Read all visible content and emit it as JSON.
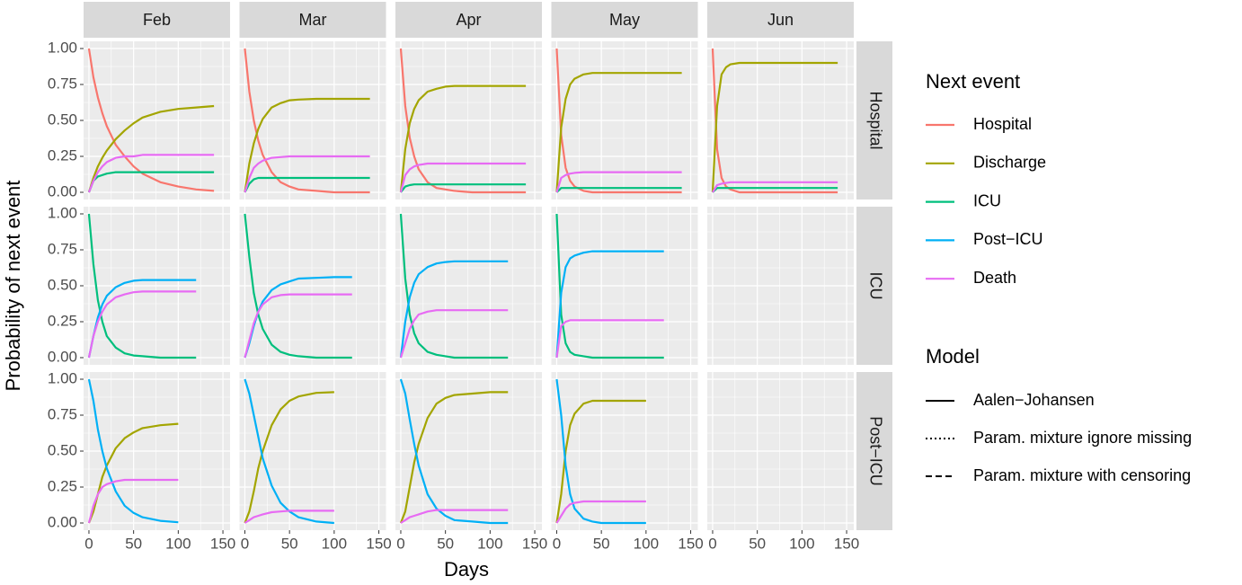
{
  "chart_data": {
    "type": "facet_line",
    "x_label": "Days",
    "y_label": "Probability of next event",
    "columns": [
      "Feb",
      "Mar",
      "Apr",
      "May",
      "Jun"
    ],
    "rows": [
      "Hospital",
      "ICU",
      "Post−ICU"
    ],
    "legend_title": "Next event",
    "series": [
      {
        "name": "Hospital",
        "color": "#F8766D"
      },
      {
        "name": "Discharge",
        "color": "#A3A500"
      },
      {
        "name": "ICU",
        "color": "#00BF7D"
      },
      {
        "name": "Post−ICU",
        "color": "#00B0F6"
      },
      {
        "name": "Death",
        "color": "#E76BF3"
      }
    ],
    "model_title": "Model",
    "models": [
      {
        "name": "Aalen−Johansen",
        "dash": "none"
      },
      {
        "name": "Param. mixture ignore missing",
        "dash": "2,3"
      },
      {
        "name": "Param. mixture with censoring",
        "dash": "7,4"
      }
    ],
    "x": [
      0,
      5,
      10,
      15,
      20,
      30,
      40,
      50,
      60,
      80,
      100,
      120,
      140
    ],
    "xlim": [
      -6,
      158
    ],
    "xticks": [
      0,
      50,
      100,
      150
    ],
    "ylim": [
      -0.05,
      1.05
    ],
    "yticks": [
      {
        "value": 0,
        "label": "0.00"
      },
      {
        "value": 0.25,
        "label": "0.25"
      },
      {
        "value": 0.5,
        "label": "0.50"
      },
      {
        "value": 0.75,
        "label": "0.75"
      },
      {
        "value": 1,
        "label": "1.00"
      }
    ],
    "grid": true,
    "panels": [
      [
        {
          "values": [
            [
              1,
              0.8,
              0.66,
              0.55,
              0.46,
              0.33,
              0.25,
              0.18,
              0.13,
              0.07,
              0.04,
              0.02,
              0.01
            ],
            [
              0,
              0.1,
              0.18,
              0.24,
              0.29,
              0.37,
              0.43,
              0.48,
              0.52,
              0.56,
              0.58,
              0.59,
              0.6
            ],
            [
              0,
              0.08,
              0.11,
              0.12,
              0.13,
              0.14,
              0.14,
              0.14,
              0.14,
              0.14,
              0.14,
              0.14,
              0.14
            ],
            null,
            [
              0,
              0.08,
              0.14,
              0.18,
              0.21,
              0.24,
              0.25,
              0.25,
              0.26,
              0.26,
              0.26,
              0.26,
              0.26
            ]
          ]
        },
        {
          "values": [
            [
              1,
              0.7,
              0.5,
              0.36,
              0.26,
              0.14,
              0.07,
              0.04,
              0.02,
              0.01,
              0,
              0,
              0
            ],
            [
              0,
              0.2,
              0.34,
              0.44,
              0.51,
              0.59,
              0.62,
              0.64,
              0.645,
              0.65,
              0.65,
              0.65,
              0.65
            ],
            [
              0,
              0.06,
              0.09,
              0.1,
              0.1,
              0.1,
              0.1,
              0.1,
              0.1,
              0.1,
              0.1,
              0.1,
              0.1
            ],
            null,
            [
              0,
              0.1,
              0.17,
              0.2,
              0.22,
              0.24,
              0.245,
              0.25,
              0.25,
              0.25,
              0.25,
              0.25,
              0.25
            ]
          ]
        },
        {
          "values": [
            [
              1,
              0.6,
              0.38,
              0.25,
              0.16,
              0.07,
              0.03,
              0.02,
              0.01,
              0,
              0,
              0,
              0
            ],
            [
              0,
              0.3,
              0.48,
              0.58,
              0.64,
              0.7,
              0.72,
              0.735,
              0.74,
              0.74,
              0.74,
              0.74,
              0.74
            ],
            [
              0,
              0.04,
              0.05,
              0.055,
              0.055,
              0.055,
              0.055,
              0.055,
              0.055,
              0.055,
              0.055,
              0.055,
              0.055
            ],
            null,
            [
              0,
              0.12,
              0.16,
              0.18,
              0.19,
              0.2,
              0.2,
              0.2,
              0.2,
              0.2,
              0.2,
              0.2,
              0.2
            ]
          ]
        },
        {
          "values": [
            [
              1,
              0.4,
              0.17,
              0.08,
              0.04,
              0.01,
              0,
              0,
              0,
              0,
              0,
              0,
              0
            ],
            [
              0,
              0.45,
              0.65,
              0.75,
              0.79,
              0.82,
              0.83,
              0.83,
              0.83,
              0.83,
              0.83,
              0.83,
              0.83
            ],
            [
              0,
              0.03,
              0.03,
              0.03,
              0.03,
              0.03,
              0.03,
              0.03,
              0.03,
              0.03,
              0.03,
              0.03,
              0.03
            ],
            null,
            [
              0,
              0.1,
              0.12,
              0.13,
              0.135,
              0.14,
              0.14,
              0.14,
              0.14,
              0.14,
              0.14,
              0.14,
              0.14
            ]
          ]
        },
        {
          "values": [
            [
              1,
              0.3,
              0.1,
              0.04,
              0.02,
              0,
              0,
              0,
              0,
              0,
              0,
              0,
              0
            ],
            [
              0,
              0.6,
              0.82,
              0.87,
              0.89,
              0.9,
              0.9,
              0.9,
              0.9,
              0.9,
              0.9,
              0.9,
              0.9
            ],
            [
              0,
              0.03,
              0.03,
              0.03,
              0.03,
              0.03,
              0.03,
              0.03,
              0.03,
              0.03,
              0.03,
              0.03,
              0.03
            ],
            null,
            [
              0,
              0.05,
              0.06,
              0.065,
              0.07,
              0.07,
              0.07,
              0.07,
              0.07,
              0.07,
              0.07,
              0.07,
              0.07
            ]
          ]
        }
      ],
      [
        {
          "values": [
            null,
            null,
            [
              1,
              0.65,
              0.4,
              0.25,
              0.15,
              0.07,
              0.03,
              0.015,
              0.01,
              0,
              0,
              0,
              null
            ],
            [
              0,
              0.15,
              0.28,
              0.37,
              0.43,
              0.49,
              0.52,
              0.535,
              0.54,
              0.54,
              0.54,
              0.54,
              null
            ],
            [
              0,
              0.15,
              0.25,
              0.32,
              0.37,
              0.42,
              0.44,
              0.455,
              0.46,
              0.46,
              0.46,
              0.46,
              null
            ]
          ]
        },
        {
          "values": [
            null,
            null,
            [
              1,
              0.7,
              0.45,
              0.3,
              0.2,
              0.09,
              0.04,
              0.02,
              0.01,
              0,
              0,
              0,
              null
            ],
            [
              0,
              0.1,
              0.22,
              0.32,
              0.39,
              0.47,
              0.51,
              0.53,
              0.55,
              0.555,
              0.56,
              0.56,
              null
            ],
            [
              0,
              0.12,
              0.24,
              0.32,
              0.37,
              0.42,
              0.435,
              0.44,
              0.44,
              0.44,
              0.44,
              0.44,
              null
            ]
          ]
        },
        {
          "values": [
            null,
            null,
            [
              1,
              0.55,
              0.3,
              0.17,
              0.1,
              0.04,
              0.02,
              0.01,
              0,
              0,
              0,
              0,
              null
            ],
            [
              0,
              0.25,
              0.42,
              0.52,
              0.58,
              0.63,
              0.655,
              0.665,
              0.67,
              0.67,
              0.67,
              0.67,
              null
            ],
            [
              0,
              0.1,
              0.2,
              0.26,
              0.3,
              0.32,
              0.33,
              0.33,
              0.33,
              0.33,
              0.33,
              0.33,
              null
            ]
          ]
        },
        {
          "values": [
            null,
            null,
            [
              1,
              0.3,
              0.1,
              0.04,
              0.02,
              0.01,
              0,
              0,
              0,
              0,
              0,
              0,
              null
            ],
            [
              0,
              0.45,
              0.63,
              0.69,
              0.71,
              0.73,
              0.74,
              0.74,
              0.74,
              0.74,
              0.74,
              0.74,
              null
            ],
            [
              0,
              0.22,
              0.25,
              0.26,
              0.26,
              0.26,
              0.26,
              0.26,
              0.26,
              0.26,
              0.26,
              0.26,
              null
            ]
          ]
        },
        null
      ],
      [
        {
          "values": [
            null,
            [
              0,
              0.08,
              0.2,
              0.32,
              0.4,
              0.52,
              0.59,
              0.63,
              0.66,
              0.68,
              0.69,
              null,
              null
            ],
            null,
            [
              1,
              0.85,
              0.65,
              0.5,
              0.38,
              0.22,
              0.12,
              0.07,
              0.04,
              0.015,
              0.005,
              null,
              null
            ],
            [
              0,
              0.12,
              0.2,
              0.25,
              0.27,
              0.29,
              0.3,
              0.3,
              0.3,
              0.3,
              0.3,
              null,
              null
            ]
          ]
        },
        {
          "values": [
            null,
            [
              0,
              0.08,
              0.22,
              0.38,
              0.5,
              0.68,
              0.79,
              0.85,
              0.88,
              0.905,
              0.91,
              null,
              null
            ],
            null,
            [
              1,
              0.9,
              0.75,
              0.6,
              0.45,
              0.26,
              0.14,
              0.08,
              0.04,
              0.01,
              0,
              null,
              null
            ],
            [
              0,
              0.02,
              0.04,
              0.05,
              0.06,
              0.075,
              0.08,
              0.085,
              0.085,
              0.085,
              0.085,
              null,
              null
            ]
          ]
        },
        {
          "values": [
            null,
            [
              0,
              0.08,
              0.25,
              0.42,
              0.55,
              0.73,
              0.83,
              0.87,
              0.89,
              0.9,
              0.91,
              0.91,
              null
            ],
            null,
            [
              1,
              0.9,
              0.72,
              0.55,
              0.4,
              0.2,
              0.1,
              0.05,
              0.02,
              0.01,
              0,
              0,
              null
            ],
            [
              0,
              0.02,
              0.04,
              0.05,
              0.06,
              0.08,
              0.09,
              0.09,
              0.09,
              0.09,
              0.09,
              0.09,
              null
            ]
          ]
        },
        {
          "values": [
            null,
            [
              0,
              0.2,
              0.5,
              0.68,
              0.76,
              0.83,
              0.85,
              0.85,
              0.85,
              0.85,
              0.85,
              null,
              null
            ],
            null,
            [
              1,
              0.75,
              0.4,
              0.2,
              0.1,
              0.03,
              0.01,
              0,
              0,
              0,
              0,
              null,
              null
            ],
            [
              0,
              0.05,
              0.1,
              0.13,
              0.14,
              0.15,
              0.15,
              0.15,
              0.15,
              0.15,
              0.15,
              null,
              null
            ]
          ]
        },
        null
      ]
    ]
  }
}
